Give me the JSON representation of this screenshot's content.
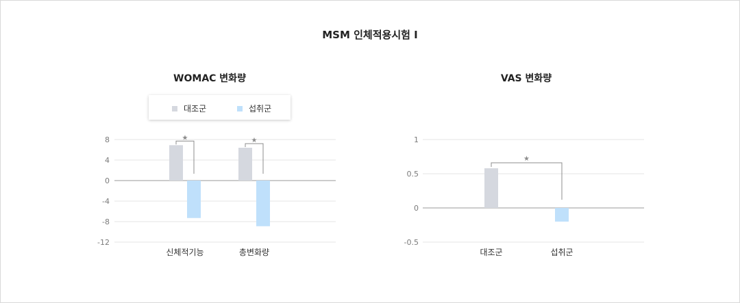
{
  "page_title": "MSM 인체적용시험 I",
  "colors": {
    "control": "#d5d8df",
    "intake": "#bfe0fb",
    "bracket": "#8c8c8c",
    "grid": "#e6e6e6",
    "axis": "#999999"
  },
  "legend": {
    "control_label": "대조군",
    "intake_label": "섭취군"
  },
  "chart_data": [
    {
      "type": "bar",
      "title": "WOMAC 변화량",
      "categories": [
        "신체적기능",
        "총변화량"
      ],
      "series": [
        {
          "name": "대조군",
          "values": [
            6.9,
            6.4
          ]
        },
        {
          "name": "섭취군",
          "values": [
            -7.3,
            -8.9
          ]
        }
      ],
      "yticks": [
        8,
        4,
        0,
        -4,
        -8,
        -12
      ],
      "ylim": [
        -12,
        8
      ],
      "grid": true,
      "legend_position": "top",
      "significance": [
        {
          "category": "신체적기능",
          "marker": "★"
        },
        {
          "category": "총변화량",
          "marker": "★"
        }
      ]
    },
    {
      "type": "bar",
      "title": "VAS 변화량",
      "categories": [
        "대조군",
        "섭취군"
      ],
      "values": [
        0.58,
        -0.2
      ],
      "yticks": [
        "1",
        "0.5",
        "0",
        "-0.5"
      ],
      "ylim": [
        -0.5,
        1
      ],
      "grid": true,
      "significance": [
        {
          "between": [
            "대조군",
            "섭취군"
          ],
          "marker": "★"
        }
      ]
    }
  ]
}
